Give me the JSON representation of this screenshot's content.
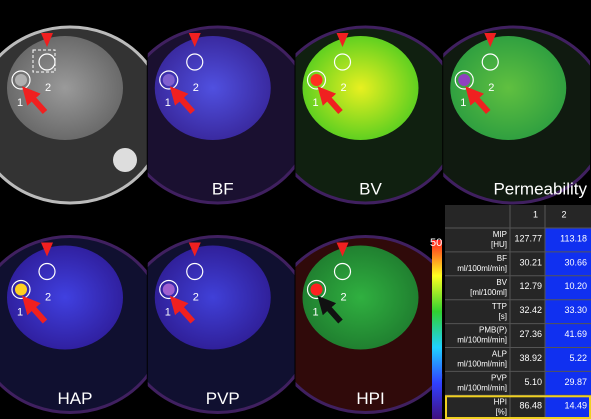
{
  "panel_labels": [
    "BF",
    "BV",
    "Permeability",
    "HAP",
    "PVP",
    "HPI"
  ],
  "markers": [
    "1",
    "2"
  ],
  "colorbar_max": "50",
  "table": {
    "header": [
      "1",
      "2"
    ],
    "rows": [
      {
        "name": "MIP",
        "unit": "[HU]",
        "values": [
          "127.77",
          "113.18"
        ]
      },
      {
        "name": "BF",
        "unit": "ml/100ml/min]",
        "values": [
          "30.21",
          "30.66"
        ]
      },
      {
        "name": "BV",
        "unit": "[ml/100ml]",
        "values": [
          "12.79",
          "10.20"
        ]
      },
      {
        "name": "TTP",
        "unit": "[s]",
        "values": [
          "32.42",
          "33.30"
        ]
      },
      {
        "name": "PMB(P)",
        "unit": "ml/100ml/min]",
        "values": [
          "27.36",
          "41.69"
        ]
      },
      {
        "name": "ALP",
        "unit": "ml/100ml/min]",
        "values": [
          "38.92",
          "5.22"
        ]
      },
      {
        "name": "PVP",
        "unit": "ml/100ml/min]",
        "values": [
          "5.10",
          "29.87"
        ]
      },
      {
        "name": "HPI",
        "unit": "[%]",
        "values": [
          "86.48",
          "14.49"
        ]
      }
    ]
  }
}
